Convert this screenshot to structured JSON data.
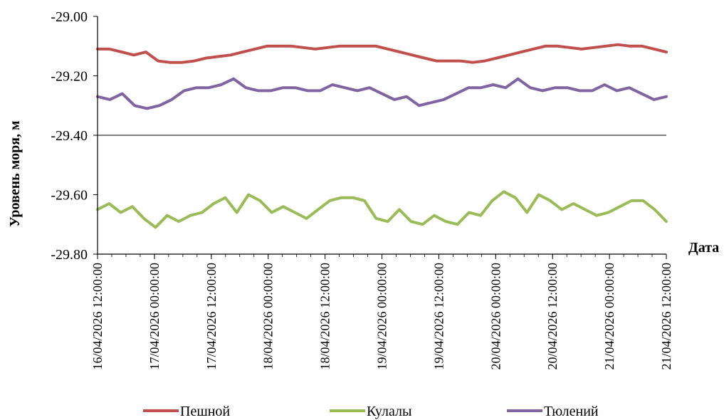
{
  "chart_data": {
    "type": "line",
    "xlabel": "Дата",
    "ylabel": "Уровень моря, м",
    "ylim": [
      -29.8,
      -29.0
    ],
    "yticks": [
      "-29.00",
      "-29.20",
      "-29.40",
      "-29.60",
      "-29.80"
    ],
    "xlim": [
      0,
      120
    ],
    "x_step_hours": 3,
    "x_start": "16/04/2026 12:00:00",
    "xticks": [
      "16/04/2026 12:00:00",
      "17/04/2026 00:00:00",
      "17/04/2026 12:00:00",
      "18/04/2026 00:00:00",
      "18/04/2026 12:00:00",
      "19/04/2026 00:00:00",
      "19/04/2026 12:00:00",
      "20/04/2026 00:00:00",
      "20/04/2026 12:00:00",
      "21/04/2026 00:00:00",
      "21/04/2026 12:00:00"
    ],
    "grid": "horizontal line at -29.40",
    "legend": "bottom",
    "series": [
      {
        "name": "Пешной",
        "color": "#c0504d",
        "values": [
          -29.11,
          -29.11,
          -29.12,
          -29.13,
          -29.12,
          -29.15,
          -29.155,
          -29.155,
          -29.15,
          -29.14,
          -29.135,
          -29.13,
          -29.12,
          -29.11,
          -29.1,
          -29.1,
          -29.1,
          -29.105,
          -29.11,
          -29.105,
          -29.1,
          -29.1,
          -29.1,
          -29.1,
          -29.11,
          -29.12,
          -29.13,
          -29.14,
          -29.15,
          -29.15,
          -29.15,
          -29.155,
          -29.15,
          -29.14,
          -29.13,
          -29.12,
          -29.11,
          -29.1,
          -29.1,
          -29.105,
          -29.11,
          -29.105,
          -29.1,
          -29.095,
          -29.1,
          -29.1,
          -29.11,
          -29.12
        ]
      },
      {
        "name": "Кулалы",
        "color": "#9bbb59",
        "values": [
          -29.65,
          -29.63,
          -29.66,
          -29.64,
          -29.68,
          -29.71,
          -29.67,
          -29.69,
          -29.67,
          -29.66,
          -29.63,
          -29.61,
          -29.66,
          -29.6,
          -29.62,
          -29.66,
          -29.64,
          -29.66,
          -29.68,
          -29.65,
          -29.62,
          -29.61,
          -29.61,
          -29.62,
          -29.68,
          -29.69,
          -29.65,
          -29.69,
          -29.7,
          -29.67,
          -29.69,
          -29.7,
          -29.66,
          -29.67,
          -29.62,
          -29.59,
          -29.61,
          -29.66,
          -29.6,
          -29.62,
          -29.65,
          -29.63,
          -29.65,
          -29.67,
          -29.66,
          -29.64,
          -29.62,
          -29.62,
          -29.65,
          -29.69
        ]
      },
      {
        "name": "Тюлений",
        "color": "#8064a2",
        "values": [
          -29.27,
          -29.28,
          -29.26,
          -29.3,
          -29.31,
          -29.3,
          -29.28,
          -29.25,
          -29.24,
          -29.24,
          -29.23,
          -29.21,
          -29.24,
          -29.25,
          -29.25,
          -29.24,
          -29.24,
          -29.25,
          -29.25,
          -29.23,
          -29.24,
          -29.25,
          -29.24,
          -29.26,
          -29.28,
          -29.27,
          -29.3,
          -29.29,
          -29.28,
          -29.26,
          -29.24,
          -29.24,
          -29.23,
          -29.24,
          -29.21,
          -29.24,
          -29.25,
          -29.24,
          -29.24,
          -29.25,
          -29.25,
          -29.23,
          -29.25,
          -29.24,
          -29.26,
          -29.28,
          -29.27
        ]
      }
    ]
  }
}
